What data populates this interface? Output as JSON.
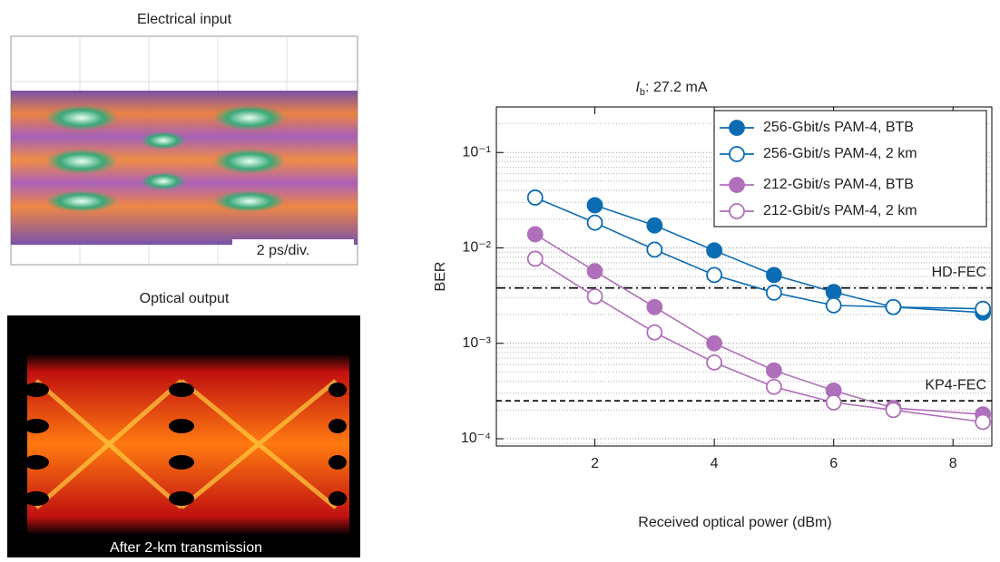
{
  "panels": {
    "electrical_title": "Electrical input",
    "electrical_scale": "2 ps/div.",
    "optical_title": "Optical output",
    "optical_caption": "After 2-km transmission"
  },
  "chart_data": {
    "type": "line",
    "title": [
      "I",
      "b",
      ": 27.2 mA"
    ],
    "xlabel": "Received optical power (dBm)",
    "ylabel": "BER",
    "xlim": [
      0.35,
      8.65
    ],
    "xticks": [
      2,
      4,
      6,
      8
    ],
    "ylim": [
      8.4e-05,
      0.3
    ],
    "ylog": true,
    "minor_grid": true,
    "yticks": [
      {
        "value": 0.0001,
        "label": "10⁻⁴"
      },
      {
        "value": 0.001,
        "label": "10⁻³"
      },
      {
        "value": 0.01,
        "label": "10⁻²"
      },
      {
        "value": 0.1,
        "label": "10⁻¹"
      }
    ],
    "legend": "top-right",
    "series": [
      {
        "name": "256-Gbit/s PAM-4, BTB",
        "color": "#0b6cb3",
        "marker": "filled",
        "x": [
          2,
          3,
          4,
          5,
          6,
          7,
          8.5
        ],
        "values": [
          0.028,
          0.0172,
          0.0094,
          0.0052,
          0.00345,
          0.0024,
          0.0021
        ]
      },
      {
        "name": "256-Gbit/s PAM-4, 2 km",
        "color": "#0b6cb3",
        "marker": "open",
        "x": [
          1,
          2,
          3,
          4,
          5,
          6,
          7,
          8.5
        ],
        "values": [
          0.0337,
          0.0184,
          0.0096,
          0.0052,
          0.0034,
          0.0025,
          0.0024,
          0.0023
        ]
      },
      {
        "name": "212-Gbit/s PAM-4, BTB",
        "color": "#b06fba",
        "marker": "filled",
        "x": [
          1,
          2,
          3,
          4,
          5,
          6,
          7,
          8.5
        ],
        "values": [
          0.0139,
          0.0057,
          0.0024,
          0.001,
          0.00052,
          0.00032,
          0.00021,
          0.00018
        ]
      },
      {
        "name": "212-Gbit/s PAM-4, 2 km",
        "color": "#b06fba",
        "marker": "open",
        "x": [
          1,
          2,
          3,
          4,
          5,
          6,
          7,
          8.5
        ],
        "values": [
          0.0077,
          0.0031,
          0.0013,
          0.00063,
          0.00035,
          0.00024,
          0.0002,
          0.00015
        ]
      }
    ],
    "thresholds": [
      {
        "label": "HD-FEC",
        "value": 0.0038,
        "dash": "dash-dot"
      },
      {
        "label": "KP4-FEC",
        "value": 0.00025,
        "dash": "dash"
      }
    ]
  }
}
